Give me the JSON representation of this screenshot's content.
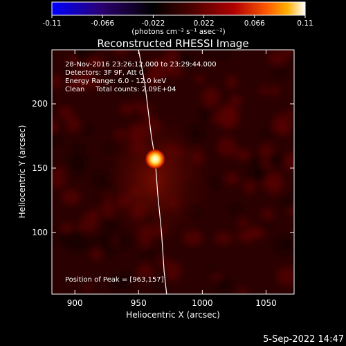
{
  "chart_data": {
    "type": "heatmap",
    "title": "Reconstructed RHESSI Image",
    "xlabel": "Heliocentric X (arcsec)",
    "ylabel": "Heliocentric Y (arcsec)",
    "xlim": [
      882,
      1072
    ],
    "ylim": [
      52,
      242
    ],
    "x_ticks": [
      900,
      950,
      1000,
      1050
    ],
    "y_ticks": [
      100,
      150,
      200
    ],
    "colorbar": {
      "min": -0.11,
      "max": 0.11,
      "ticks": [
        "-0.11",
        "-0.066",
        "-0.022",
        "0.022",
        "0.066",
        "0.11"
      ],
      "label": "(photons cm⁻² s⁻¹ asec⁻²)",
      "colors": [
        "#0000ff",
        "#2a006e",
        "#000000",
        "#4a0000",
        "#b00000",
        "#ff5a00",
        "#ffb000",
        "#ffffff"
      ]
    },
    "annotations": [
      "28-Nov-2016 23:26:12.000 to 23:29:44.000",
      "Detectors: 3F 9F, Att 0",
      "Energy Range: 6.0 - 12.0 keV",
      "Clean     Total counts: 2.09E+04"
    ],
    "peak_label": "Position of Peak = [963,157]",
    "peak": {
      "x": 963,
      "y": 157
    },
    "limb": [
      [
        950,
        242
      ],
      [
        955,
        215
      ],
      [
        960,
        175
      ],
      [
        963,
        157
      ],
      [
        965,
        130
      ],
      [
        968,
        100
      ],
      [
        970,
        70
      ],
      [
        972,
        52
      ]
    ]
  },
  "footer": {
    "date": "5-Sep-2022 14:47"
  }
}
